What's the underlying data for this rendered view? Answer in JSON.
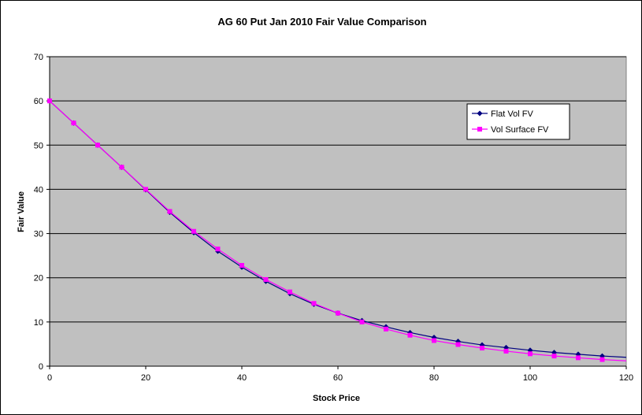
{
  "chart_data": {
    "type": "line",
    "title": "AG 60 Put Jan 2010 Fair Value Comparison",
    "xlabel": "Stock Price",
    "ylabel": "Fair Value",
    "xlim": [
      0,
      120
    ],
    "ylim": [
      0,
      70
    ],
    "xticks": [
      "0",
      "20",
      "40",
      "60",
      "80",
      "100",
      "120"
    ],
    "yticks": [
      "0",
      "10",
      "20",
      "30",
      "40",
      "50",
      "60",
      "70"
    ],
    "grid": "horizontal",
    "legend": "upper-right",
    "plot_background": "#c0c0c0",
    "x": [
      0,
      5,
      10,
      15,
      20,
      25,
      30,
      35,
      40,
      45,
      50,
      55,
      60,
      65,
      70,
      75,
      80,
      85,
      90,
      95,
      100,
      105,
      110,
      115,
      120
    ],
    "series": [
      {
        "name": "Flat Vol FV",
        "color": "#000080",
        "marker": "diamond",
        "values": [
          60.0,
          55.0,
          50.0,
          45.0,
          39.9,
          34.8,
          30.2,
          26.0,
          22.4,
          19.2,
          16.4,
          14.0,
          12.0,
          10.3,
          8.9,
          7.6,
          6.5,
          5.6,
          4.8,
          4.2,
          3.6,
          3.1,
          2.7,
          2.3,
          2.0
        ]
      },
      {
        "name": "Vol Surface FV",
        "color": "#ff00ff",
        "marker": "square",
        "values": [
          60.0,
          55.0,
          50.0,
          45.0,
          40.0,
          35.0,
          30.5,
          26.5,
          22.8,
          19.6,
          16.8,
          14.2,
          12.0,
          10.0,
          8.4,
          7.0,
          5.8,
          4.9,
          4.1,
          3.4,
          2.8,
          2.3,
          1.9,
          1.5,
          1.2
        ]
      }
    ]
  }
}
